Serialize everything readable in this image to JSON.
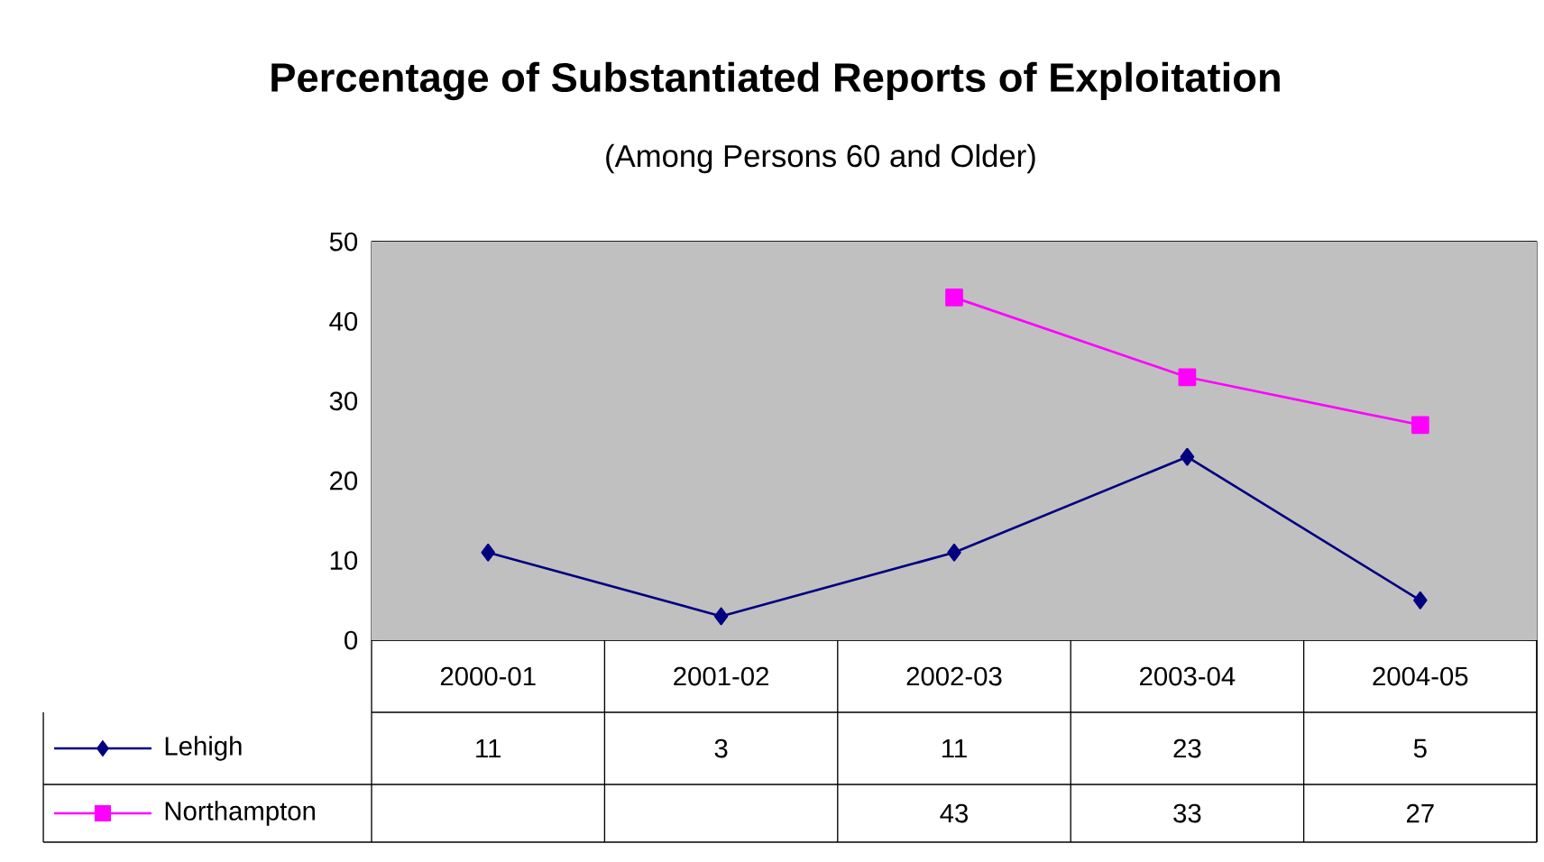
{
  "chart_data": {
    "type": "line",
    "title": "Percentage of Substantiated Reports of Exploitation",
    "subtitle": "(Among Persons 60 and Older)",
    "categories": [
      "2000-01",
      "2001-02",
      "2002-03",
      "2003-04",
      "2004-05"
    ],
    "series": [
      {
        "name": "Lehigh",
        "color": "#000080",
        "marker": "diamond",
        "values": [
          11,
          3,
          11,
          23,
          5
        ]
      },
      {
        "name": "Northampton",
        "color": "#ff00ff",
        "marker": "square",
        "values": [
          null,
          null,
          43,
          33,
          27
        ]
      }
    ],
    "ylim": [
      0,
      50
    ],
    "yticks": [
      0,
      10,
      20,
      30,
      40,
      50
    ],
    "grid": "y",
    "legend": "bottom",
    "data_labels": true
  }
}
